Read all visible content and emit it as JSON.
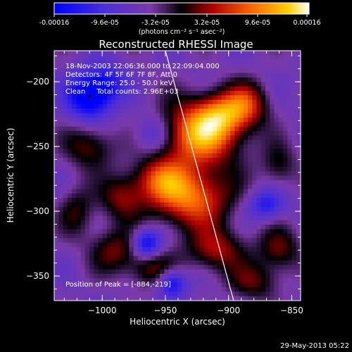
{
  "colorbar": {
    "ticks": [
      "-0.00016",
      "-9.6e-05",
      "-3.2e-05",
      "3.2e-05",
      "9.6e-05",
      "0.00016"
    ],
    "units": "(photons cm⁻² s⁻¹ asec⁻²)"
  },
  "chart_data": {
    "type": "heatmap",
    "title": "Reconstructed RHESSI Image",
    "xlabel": "Heliocentric X (arcsec)",
    "ylabel": "Heliocentric Y (arcsec)",
    "xlim": [
      -1038,
      -843
    ],
    "ylim": [
      -369,
      -176
    ],
    "xticks": [
      -1000,
      -950,
      -900,
      -850
    ],
    "yticks": [
      -200,
      -250,
      -300,
      -350
    ],
    "xtick_labels": [
      "−1000",
      "−950",
      "−900",
      "−850"
    ],
    "ytick_labels": [
      "−200",
      "−250",
      "−300",
      "−350"
    ],
    "colorscale_range": [
      -0.00016,
      0.00016
    ],
    "info_lines": [
      "18-Nov-2003 22:06:36.000 to 22:09:04.000",
      "Detectors: 4F 5F 6F 7F 8F, Att 0",
      "Energy Range: 25.0 - 50.0 keV",
      "Clean     Total counts: 2.96E+03"
    ],
    "peak_label": "Position of Peak = [-884,-219]",
    "limb_line": {
      "x_top": -950,
      "y_top": -176,
      "x_bottom": -896,
      "y_bottom": -369
    },
    "marker": {
      "x": -1010,
      "y": -211
    },
    "sources": [
      {
        "x": -922,
        "y": -240,
        "sx": 22,
        "sy": 18,
        "amp": 1.0
      },
      {
        "x": -905,
        "y": -225,
        "sx": 14,
        "sy": 12,
        "amp": 0.55
      },
      {
        "x": -930,
        "y": -290,
        "sx": 22,
        "sy": 16,
        "amp": 0.85
      },
      {
        "x": -955,
        "y": -275,
        "sx": 16,
        "sy": 12,
        "amp": 0.55
      },
      {
        "x": -885,
        "y": -217,
        "sx": 12,
        "sy": 12,
        "amp": 0.55
      },
      {
        "x": -1010,
        "y": -250,
        "sx": 14,
        "sy": 12,
        "amp": 0.45
      },
      {
        "x": -985,
        "y": -290,
        "sx": 12,
        "sy": 12,
        "amp": 0.45
      },
      {
        "x": -990,
        "y": -330,
        "sx": 14,
        "sy": 12,
        "amp": 0.45
      },
      {
        "x": -1020,
        "y": -300,
        "sx": 10,
        "sy": 14,
        "amp": 0.35
      },
      {
        "x": -960,
        "y": -345,
        "sx": 14,
        "sy": 10,
        "amp": 0.45
      },
      {
        "x": -910,
        "y": -330,
        "sx": 16,
        "sy": 12,
        "amp": 0.55
      },
      {
        "x": -860,
        "y": -330,
        "sx": 12,
        "sy": 12,
        "amp": 0.45
      },
      {
        "x": -860,
        "y": -265,
        "sx": 10,
        "sy": 12,
        "amp": 0.35
      },
      {
        "x": -880,
        "y": -355,
        "sx": 14,
        "sy": 10,
        "amp": 0.4
      },
      {
        "x": -1010,
        "y": -211,
        "sx": 12,
        "sy": 12,
        "amp": -0.9
      },
      {
        "x": -965,
        "y": -325,
        "sx": 8,
        "sy": 8,
        "amp": -0.7
      },
      {
        "x": -945,
        "y": -355,
        "sx": 8,
        "sy": 8,
        "amp": -0.7
      },
      {
        "x": -995,
        "y": -200,
        "sx": 10,
        "sy": 10,
        "amp": -0.4
      },
      {
        "x": -960,
        "y": -240,
        "sx": 10,
        "sy": 10,
        "amp": -0.35
      },
      {
        "x": -870,
        "y": -295,
        "sx": 10,
        "sy": 8,
        "amp": -0.5
      }
    ]
  },
  "footer": {
    "timestamp": "29-May-2013 05:22"
  }
}
